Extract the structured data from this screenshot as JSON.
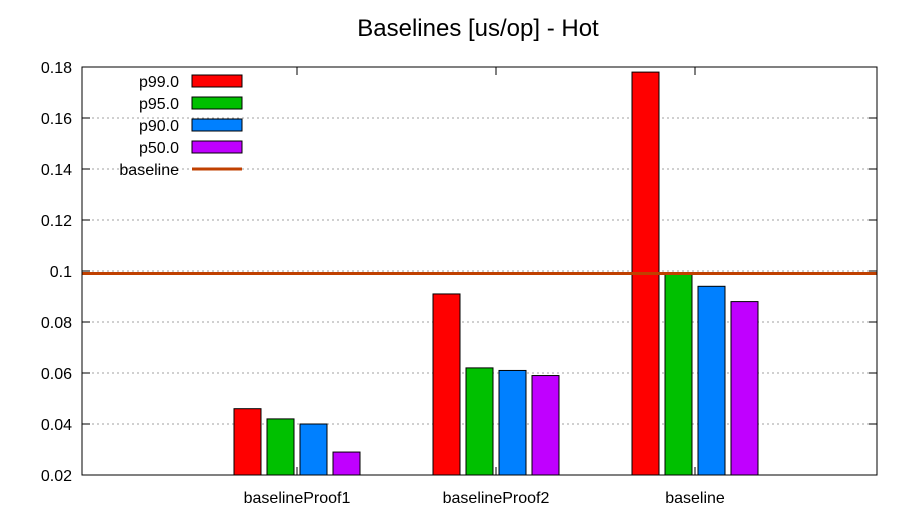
{
  "chart_data": {
    "type": "bar",
    "title": "Baselines [us/op] - Hot",
    "xlabel": "",
    "ylabel": "",
    "ylim": [
      0.02,
      0.18
    ],
    "yticks": [
      "0.02",
      "0.04",
      "0.06",
      "0.08",
      "0.1",
      "0.12",
      "0.14",
      "0.16",
      "0.18"
    ],
    "categories": [
      "baselineProof1",
      "baselineProof2",
      "baseline"
    ],
    "series": [
      {
        "name": "p99.0",
        "color": "#ff0000",
        "values": [
          0.046,
          0.091,
          0.178
        ]
      },
      {
        "name": "p95.0",
        "color": "#00c000",
        "values": [
          0.042,
          0.062,
          0.099
        ]
      },
      {
        "name": "p90.0",
        "color": "#0080ff",
        "values": [
          0.04,
          0.061,
          0.094
        ]
      },
      {
        "name": "p50.0",
        "color": "#c000ff",
        "values": [
          0.029,
          0.059,
          0.088
        ]
      }
    ],
    "reference_line": {
      "name": "baseline",
      "color": "#c04000",
      "value": 0.099
    },
    "grid": "horizontal-dotted",
    "legend_position": "top-left"
  }
}
